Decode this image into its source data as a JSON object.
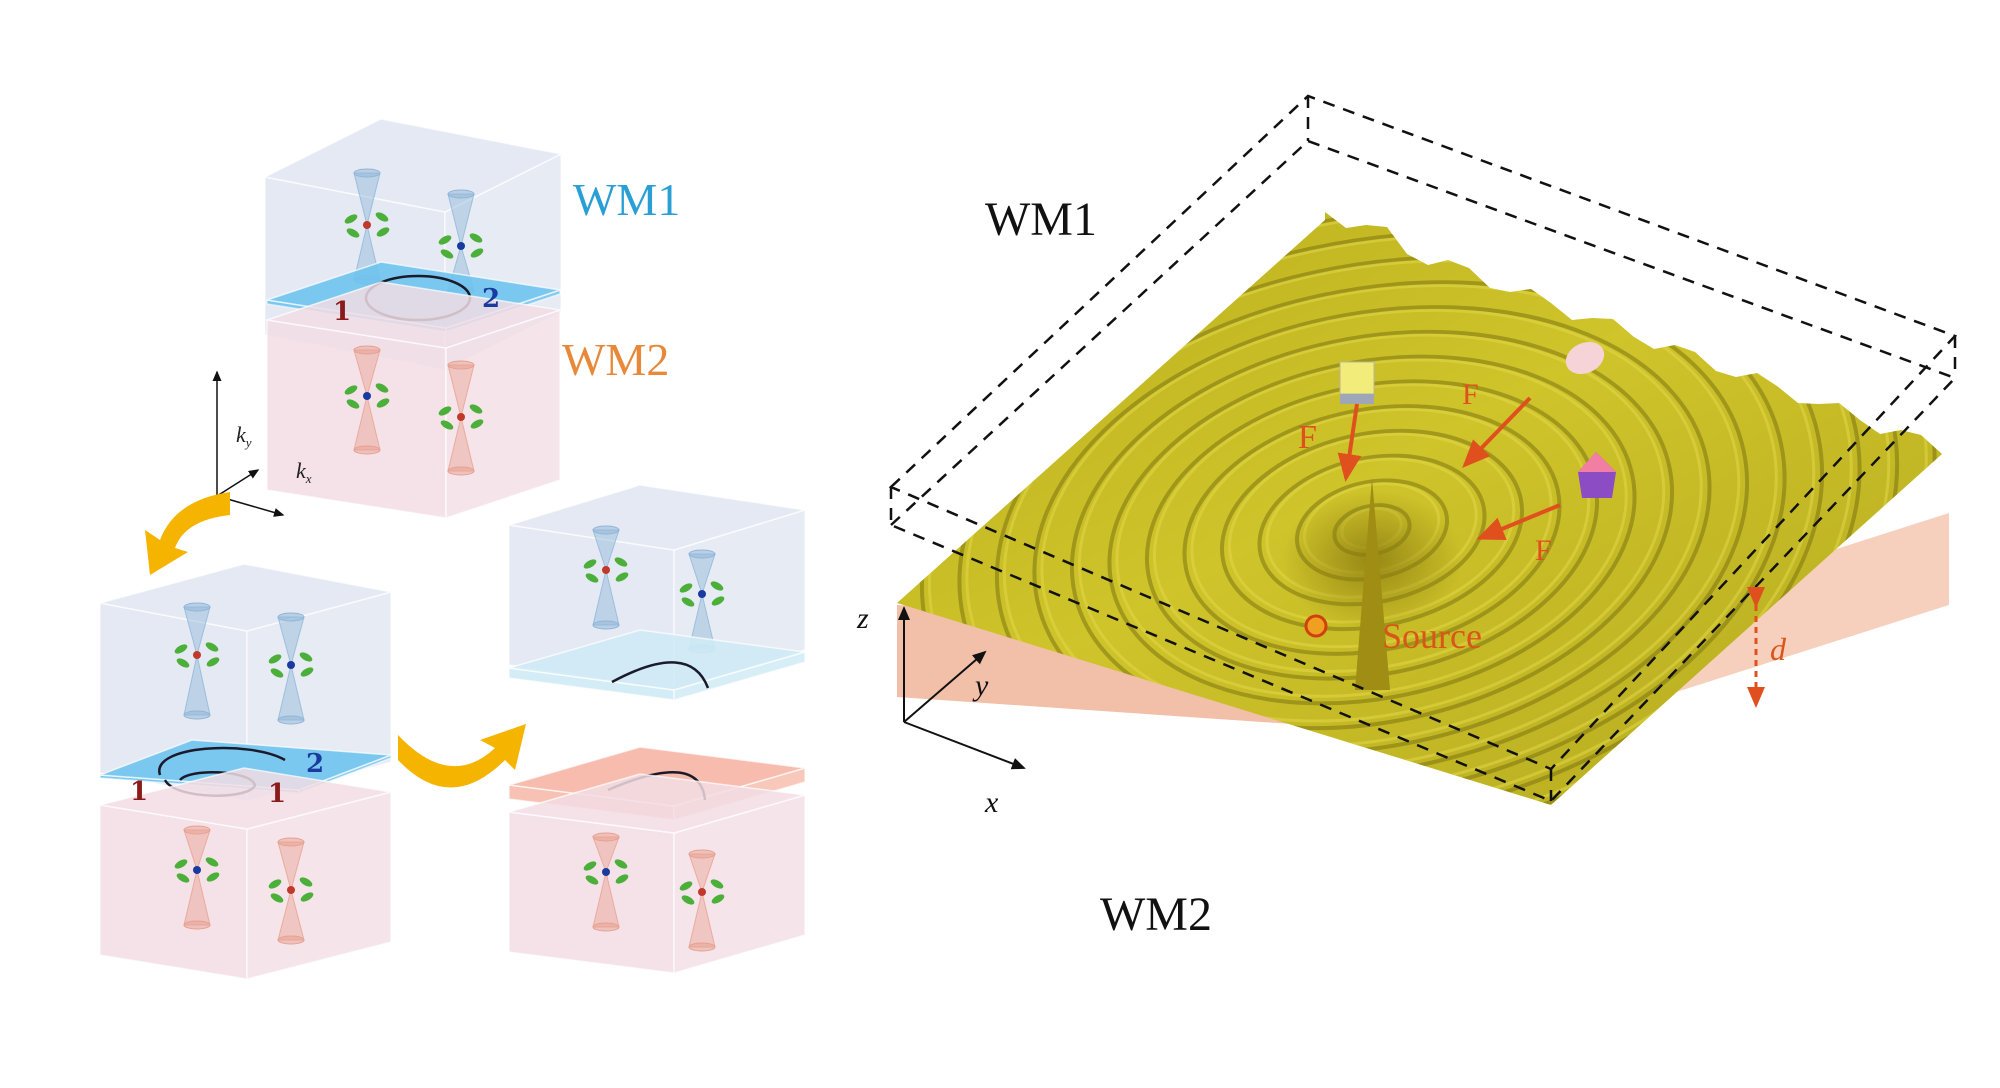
{
  "left_panel": {
    "top_stack": {
      "upper_label": "WM1",
      "lower_label": "WM2",
      "arc_end_1": "1",
      "arc_end_2": "2"
    },
    "axes": {
      "y_label": "k",
      "y_sub": "y",
      "x_label": "k",
      "x_sub": "x"
    },
    "bottom_stack": {
      "arc_end_1a": "1",
      "arc_end_1b": "1",
      "arc_end_2": "2"
    }
  },
  "right_panel": {
    "upper_label": "WM1",
    "lower_label": "WM2",
    "source_label": "Source",
    "force_label": "F",
    "distance_label": "d",
    "axis_z": "z",
    "axis_y": "y",
    "axis_x": "x"
  },
  "colors": {
    "wm1_blue": "#2a9fd6",
    "wm2_orange": "#e8893a",
    "interface_blue": "#6ec3ee",
    "box_blue": "#dfe5f1",
    "box_pink": "#f2dde4",
    "surface_yellow": "#c7bb22",
    "slab_peach": "#f5c6ad",
    "arrow_orange": "#f5b400",
    "force_red": "#e0501e"
  }
}
